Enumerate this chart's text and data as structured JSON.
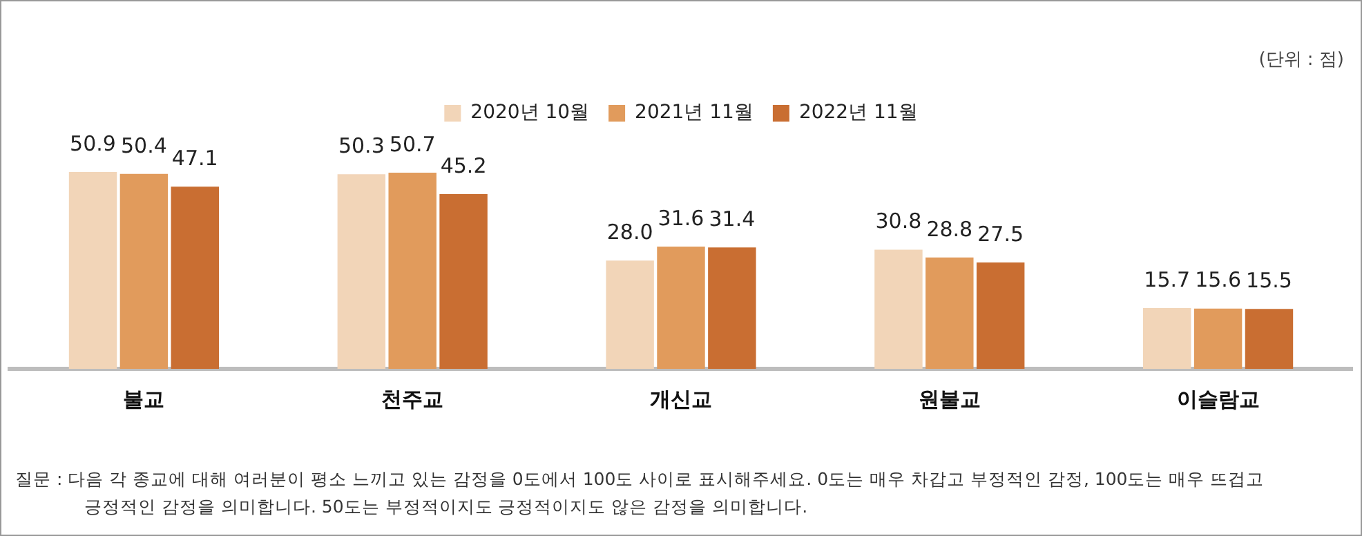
{
  "chart_data": {
    "type": "bar",
    "categories": [
      "불교",
      "천주교",
      "개신교",
      "원불교",
      "이슬람교"
    ],
    "series": [
      {
        "name": "2020년 10월",
        "color": "#f2d5b8",
        "values": [
          50.9,
          50.3,
          28.0,
          30.8,
          15.7
        ],
        "value_labels": [
          "50.9",
          "50.3",
          "28.0",
          "30.8",
          "15.7"
        ]
      },
      {
        "name": "2021년 11월",
        "color": "#e19b5c",
        "values": [
          50.4,
          50.7,
          31.6,
          28.8,
          15.6
        ],
        "value_labels": [
          "50.4",
          "50.7",
          "31.6",
          "28.8",
          "15.6"
        ]
      },
      {
        "name": "2022년 11월",
        "color": "#c96e32",
        "values": [
          47.1,
          45.2,
          31.4,
          27.5,
          15.5
        ],
        "value_labels": [
          "47.1",
          "45.2",
          "31.4",
          "27.5",
          "15.5"
        ]
      }
    ],
    "legend": "top",
    "grid": false,
    "annotations": [
      "(단위 : 점)",
      "질문 : 다음 각 종교에 대해 여러분이 평소 느끼고 있는 감정을 0도에서 100도 사이로 표시해주세요. 0도는 매우 차갑고 부정적인 감정, 100도는 매우 뜨겁고 긍정적인 감정을 의미합니다. 50도는 부정적이지도 긍정적이지도 않은 감정을 의미합니다."
    ]
  }
}
